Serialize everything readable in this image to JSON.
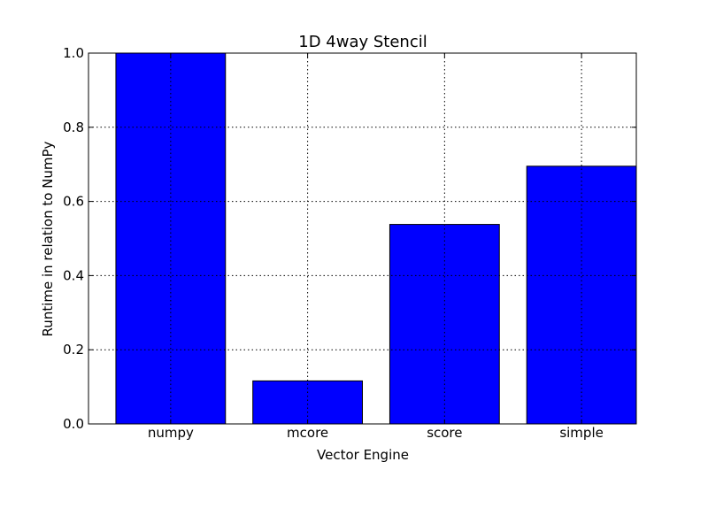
{
  "chart_data": {
    "type": "bar",
    "title": "1D 4way Stencil",
    "xlabel": "Vector Engine",
    "ylabel": "Runtime in relation to NumPy",
    "categories": [
      "numpy",
      "mcore",
      "score",
      "simple"
    ],
    "values": [
      1.0,
      0.116,
      0.538,
      0.695
    ],
    "ylim": [
      0,
      1.0
    ],
    "yticks": [
      "0.0",
      "0.2",
      "0.4",
      "0.6",
      "0.8",
      "1.0"
    ],
    "grid": true,
    "bar_color": "#0000ff"
  }
}
